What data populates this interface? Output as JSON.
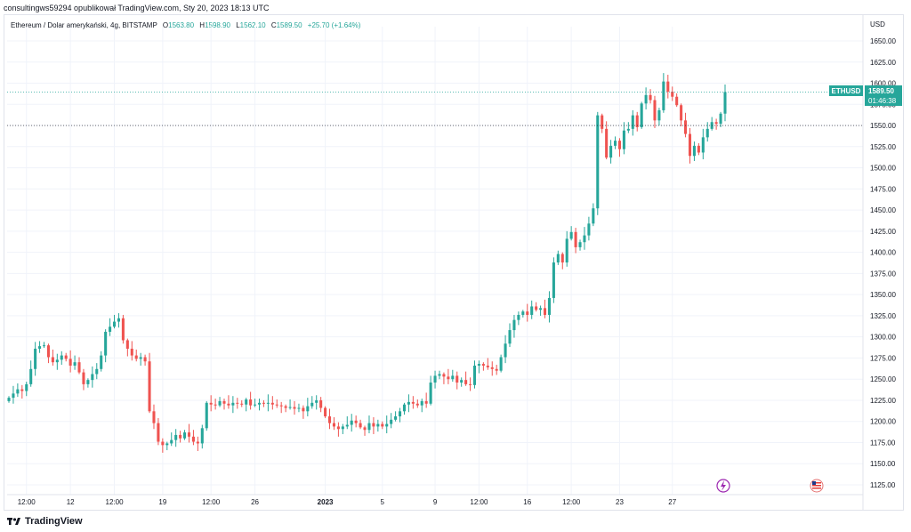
{
  "header": {
    "published_by": "consultingws59294 opublikował TradingView.com, Sty 20, 2023 18:13 UTC"
  },
  "legend": {
    "symbol_desc": "Ethereum / Dolar amerykański, 4g, BITSTAMP",
    "open_label": "O",
    "open": "1563.80",
    "high_label": "H",
    "high": "1598.90",
    "low_label": "L",
    "low": "1562.10",
    "close_label": "C",
    "close": "1589.50",
    "change": "+25.70 (+1.64%)"
  },
  "axis": {
    "currency": "USD"
  },
  "price_tag": {
    "symbol": "ETHUSD",
    "price": "1589.50",
    "countdown": "01:46:38"
  },
  "footer": {
    "brand": "TradingView"
  },
  "colors": {
    "up": "#26a69a",
    "down": "#ef5350",
    "grid": "#f0f3fa",
    "axis_text": "#131722",
    "event_icon": "#9c27b0"
  },
  "chart_data": {
    "type": "candlestick",
    "title": "Ethereum / Dolar amerykański, 4g, BITSTAMP",
    "ylabel": "USD",
    "ylim": [
      1110,
      1670
    ],
    "y_ticks": [
      "1650.00",
      "1625.00",
      "1600.00",
      "1575.00",
      "1550.00",
      "1525.00",
      "1500.00",
      "1475.00",
      "1450.00",
      "1425.00",
      "1400.00",
      "1375.00",
      "1350.00",
      "1325.00",
      "1300.00",
      "1275.00",
      "1250.00",
      "1225.00",
      "1200.00",
      "1175.00",
      "1150.00",
      "1125.00"
    ],
    "x_ticks": [
      {
        "label": "12:00",
        "index": 4
      },
      {
        "label": "12",
        "index": 14
      },
      {
        "label": "12:00",
        "index": 24
      },
      {
        "label": "19",
        "index": 35
      },
      {
        "label": "12:00",
        "index": 46
      },
      {
        "label": "26",
        "index": 56
      },
      {
        "label": "2023",
        "index": 72
      },
      {
        "label": "5",
        "index": 85
      },
      {
        "label": "9",
        "index": 97
      },
      {
        "label": "12:00",
        "index": 107
      },
      {
        "label": "16",
        "index": 118
      },
      {
        "label": "12:00",
        "index": 128
      },
      {
        "label": "23",
        "index": 139
      },
      {
        "label": "27",
        "index": 151
      }
    ],
    "close_prices": [
      1228,
      1233,
      1238,
      1236,
      1244,
      1262,
      1286,
      1289,
      1290,
      1276,
      1270,
      1273,
      1278,
      1274,
      1266,
      1270,
      1258,
      1244,
      1249,
      1256,
      1262,
      1278,
      1306,
      1312,
      1318,
      1322,
      1296,
      1286,
      1278,
      1274,
      1276,
      1271,
      1212,
      1198,
      1176,
      1172,
      1174,
      1178,
      1184,
      1180,
      1187,
      1182,
      1176,
      1174,
      1192,
      1222,
      1220,
      1219,
      1224,
      1221,
      1219,
      1222,
      1221,
      1220,
      1226,
      1219,
      1220,
      1222,
      1221,
      1222,
      1220,
      1219,
      1218,
      1216,
      1217,
      1215,
      1216,
      1212,
      1218,
      1222,
      1225,
      1216,
      1206,
      1198,
      1194,
      1191,
      1194,
      1196,
      1201,
      1198,
      1193,
      1190,
      1198,
      1194,
      1197,
      1194,
      1197,
      1202,
      1206,
      1212,
      1220,
      1223,
      1221,
      1219,
      1224,
      1221,
      1246,
      1254,
      1256,
      1253,
      1250,
      1254,
      1246,
      1249,
      1244,
      1243,
      1266,
      1268,
      1266,
      1264,
      1262,
      1260,
      1276,
      1292,
      1308,
      1320,
      1326,
      1330,
      1326,
      1336,
      1332,
      1334,
      1326,
      1346,
      1388,
      1398,
      1388,
      1416,
      1424,
      1406,
      1412,
      1420,
      1434,
      1452,
      1562,
      1546,
      1512,
      1526,
      1532,
      1522,
      1544,
      1546,
      1562,
      1548,
      1576,
      1586,
      1580,
      1556,
      1568,
      1602,
      1590,
      1584,
      1574,
      1556,
      1540,
      1514,
      1526,
      1518,
      1536,
      1546,
      1554,
      1552,
      1564,
      1589.5
    ]
  }
}
